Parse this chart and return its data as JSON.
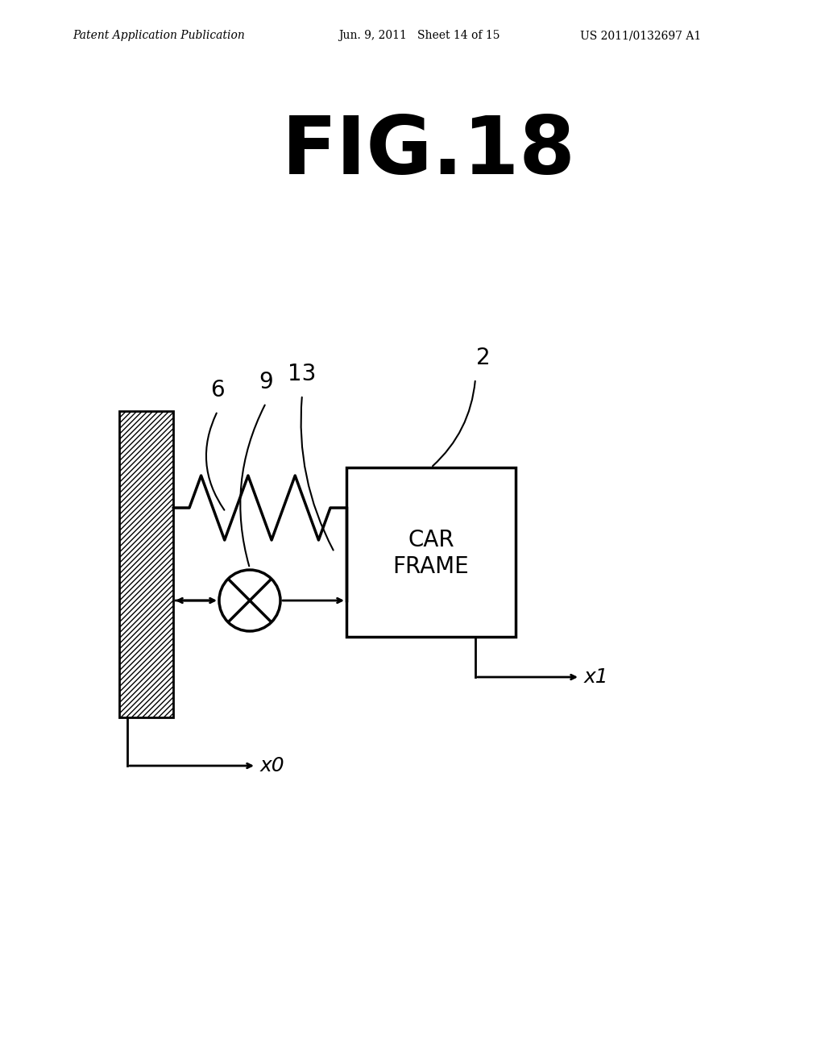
{
  "title": "FIG.18",
  "header_left": "Patent Application Publication",
  "header_mid": "Jun. 9, 2011   Sheet 14 of 15",
  "header_right": "US 2011/0132697 A1",
  "bg_color": "#ffffff",
  "fg_color": "#000000",
  "label_6": "6",
  "label_9": "9",
  "label_13": "13",
  "label_2": "2",
  "label_x0": "x0",
  "label_x1": "x1",
  "car_frame_text": [
    "CAR",
    "FRAME"
  ]
}
